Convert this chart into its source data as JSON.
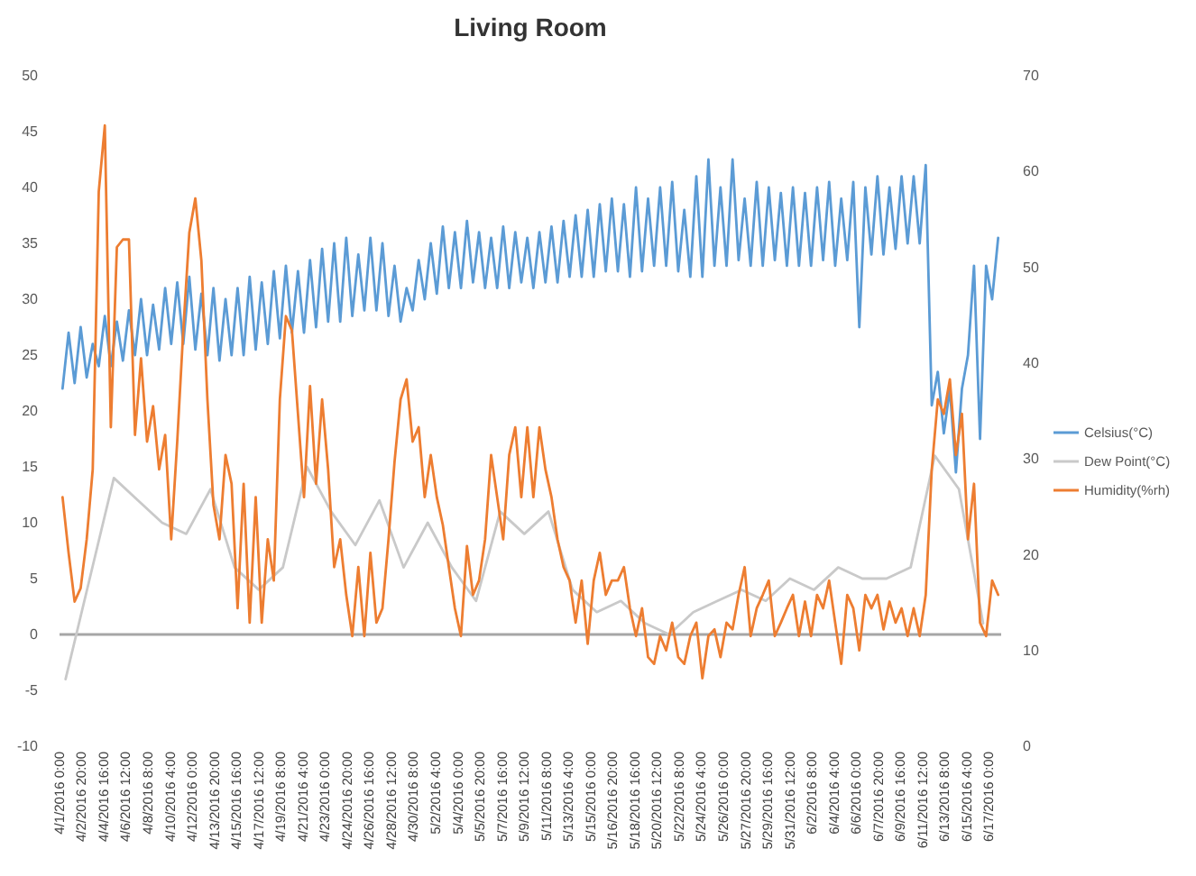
{
  "chart_data": {
    "type": "line",
    "title": "Living Room",
    "x": [
      "2016-04-01T06:00",
      "2016-04-01T18:00",
      "2016-04-02T06:00",
      "2016-04-02T18:00",
      "2016-04-03T06:00",
      "2016-04-03T18:00",
      "2016-04-04T06:00",
      "2016-04-04T18:00",
      "2016-04-05T06:00",
      "2016-04-05T18:00",
      "2016-04-06T06:00",
      "2016-04-06T18:00",
      "2016-04-07T06:00",
      "2016-04-07T18:00",
      "2016-04-08T06:00",
      "2016-04-08T18:00",
      "2016-04-09T06:00",
      "2016-04-09T18:00",
      "2016-04-10T06:00",
      "2016-04-10T18:00",
      "2016-04-11T06:00",
      "2016-04-11T18:00",
      "2016-04-12T06:00",
      "2016-04-12T18:00",
      "2016-04-13T06:00",
      "2016-04-13T18:00",
      "2016-04-14T06:00",
      "2016-04-14T18:00",
      "2016-04-15T06:00",
      "2016-04-15T18:00",
      "2016-04-16T06:00",
      "2016-04-16T18:00",
      "2016-04-17T06:00",
      "2016-04-17T18:00",
      "2016-04-18T06:00",
      "2016-04-18T18:00",
      "2016-04-19T06:00",
      "2016-04-19T18:00",
      "2016-04-20T06:00",
      "2016-04-20T18:00",
      "2016-04-21T06:00",
      "2016-04-21T18:00",
      "2016-04-22T06:00",
      "2016-04-22T18:00",
      "2016-04-23T06:00",
      "2016-04-23T18:00",
      "2016-04-24T06:00",
      "2016-04-24T18:00",
      "2016-04-25T06:00",
      "2016-04-25T18:00",
      "2016-04-26T06:00",
      "2016-04-26T18:00",
      "2016-04-27T06:00",
      "2016-04-27T18:00",
      "2016-04-28T06:00",
      "2016-04-28T18:00",
      "2016-04-29T06:00",
      "2016-04-29T18:00",
      "2016-04-30T06:00",
      "2016-04-30T18:00",
      "2016-05-01T06:00",
      "2016-05-01T18:00",
      "2016-05-02T06:00",
      "2016-05-02T18:00",
      "2016-05-03T06:00",
      "2016-05-03T18:00",
      "2016-05-04T06:00",
      "2016-05-04T18:00",
      "2016-05-05T06:00",
      "2016-05-05T18:00",
      "2016-05-06T06:00",
      "2016-05-06T18:00",
      "2016-05-07T06:00",
      "2016-05-07T18:00",
      "2016-05-08T06:00",
      "2016-05-08T18:00",
      "2016-05-09T06:00",
      "2016-05-09T18:00",
      "2016-05-10T06:00",
      "2016-05-10T18:00",
      "2016-05-11T06:00",
      "2016-05-11T18:00",
      "2016-05-12T06:00",
      "2016-05-12T18:00",
      "2016-05-13T06:00",
      "2016-05-13T18:00",
      "2016-05-14T06:00",
      "2016-05-14T18:00",
      "2016-05-15T06:00",
      "2016-05-15T18:00",
      "2016-05-16T06:00",
      "2016-05-16T18:00",
      "2016-05-17T06:00",
      "2016-05-17T18:00",
      "2016-05-18T06:00",
      "2016-05-18T18:00",
      "2016-05-19T06:00",
      "2016-05-19T18:00",
      "2016-05-20T06:00",
      "2016-05-20T18:00",
      "2016-05-21T06:00",
      "2016-05-21T18:00",
      "2016-05-22T06:00",
      "2016-05-22T18:00",
      "2016-05-23T06:00",
      "2016-05-23T18:00",
      "2016-05-24T06:00",
      "2016-05-24T18:00",
      "2016-05-25T06:00",
      "2016-05-25T18:00",
      "2016-05-26T06:00",
      "2016-05-26T18:00",
      "2016-05-27T06:00",
      "2016-05-27T18:00",
      "2016-05-28T06:00",
      "2016-05-28T18:00",
      "2016-05-29T06:00",
      "2016-05-29T18:00",
      "2016-05-30T06:00",
      "2016-05-30T18:00",
      "2016-05-31T06:00",
      "2016-05-31T18:00",
      "2016-06-01T06:00",
      "2016-06-01T18:00",
      "2016-06-02T06:00",
      "2016-06-02T18:00",
      "2016-06-03T06:00",
      "2016-06-03T18:00",
      "2016-06-04T06:00",
      "2016-06-04T18:00",
      "2016-06-05T06:00",
      "2016-06-05T18:00",
      "2016-06-06T06:00",
      "2016-06-06T18:00",
      "2016-06-07T06:00",
      "2016-06-07T18:00",
      "2016-06-08T06:00",
      "2016-06-08T18:00",
      "2016-06-09T06:00",
      "2016-06-09T18:00",
      "2016-06-10T06:00",
      "2016-06-10T18:00",
      "2016-06-11T06:00",
      "2016-06-11T18:00",
      "2016-06-12T06:00",
      "2016-06-12T18:00",
      "2016-06-13T06:00",
      "2016-06-13T18:00",
      "2016-06-14T06:00",
      "2016-06-14T18:00",
      "2016-06-15T06:00",
      "2016-06-15T18:00",
      "2016-06-16T06:00",
      "2016-06-16T18:00",
      "2016-06-17T06:00",
      "2016-06-17T18:00"
    ],
    "series": [
      {
        "name": "Celsius(°C)",
        "color": "#5b9bd5",
        "values": [
          22,
          27,
          22.5,
          27.5,
          23,
          26,
          24,
          28.5,
          24,
          28,
          24.5,
          29,
          25,
          30,
          25,
          29.5,
          25.5,
          31,
          26,
          31.5,
          26,
          32,
          25.5,
          30.5,
          25,
          31,
          24.5,
          30,
          25,
          31,
          25,
          32,
          25.5,
          31.5,
          26,
          32.5,
          26.5,
          33,
          27,
          32.5,
          27,
          33.5,
          27.5,
          34.5,
          28,
          35,
          28,
          35.5,
          28.5,
          34,
          29,
          35.5,
          29,
          35,
          28.5,
          33,
          28,
          31,
          29,
          33.5,
          30,
          35,
          30.5,
          36.5,
          31,
          36,
          31,
          37,
          31.5,
          36,
          31,
          35.5,
          31,
          36.5,
          31,
          36,
          31.5,
          35.5,
          31,
          36,
          31.5,
          36.5,
          31.5,
          37,
          32,
          37.5,
          32,
          38,
          32,
          38.5,
          32.5,
          39,
          32.5,
          38.5,
          32,
          40,
          32.5,
          39,
          33,
          40,
          33,
          40.5,
          32.5,
          38,
          32,
          41,
          32,
          42.5,
          33,
          40,
          33,
          42.5,
          33.5,
          39,
          33,
          40.5,
          33,
          40,
          33.5,
          39.5,
          33,
          40,
          33,
          39.5,
          33,
          40,
          33.5,
          40.5,
          33,
          39,
          33.5,
          40.5,
          27.5,
          40,
          34,
          41,
          34,
          40,
          34.5,
          41,
          35,
          41,
          35,
          42,
          20.5,
          23.5,
          18,
          22,
          14.5,
          22,
          25,
          33,
          17.5,
          33,
          30,
          35.5
        ]
      },
      {
        "name": "Dew Point(°C)",
        "color": "#c9c9c9",
        "x": [
          "2016-04-01T12:00",
          "2016-04-03T12:00",
          "2016-04-05T12:00",
          "2016-04-07T12:00",
          "2016-04-09T12:00",
          "2016-04-11T12:00",
          "2016-04-13T12:00",
          "2016-04-15T12:00",
          "2016-04-17T12:00",
          "2016-04-19T12:00",
          "2016-04-21T12:00",
          "2016-04-23T12:00",
          "2016-04-25T12:00",
          "2016-04-27T12:00",
          "2016-04-29T12:00",
          "2016-05-01T12:00",
          "2016-05-03T12:00",
          "2016-05-05T12:00",
          "2016-05-07T12:00",
          "2016-05-09T12:00",
          "2016-05-11T12:00",
          "2016-05-13T12:00",
          "2016-05-15T12:00",
          "2016-05-17T12:00",
          "2016-05-19T12:00",
          "2016-05-21T12:00",
          "2016-05-23T12:00",
          "2016-05-25T12:00",
          "2016-05-27T12:00",
          "2016-05-29T12:00",
          "2016-05-31T12:00",
          "2016-06-02T12:00",
          "2016-06-04T12:00",
          "2016-06-06T12:00",
          "2016-06-08T12:00",
          "2016-06-10T12:00",
          "2016-06-12T12:00",
          "2016-06-14T12:00",
          "2016-06-16T12:00"
        ],
        "values": [
          -4,
          5,
          14,
          12,
          10,
          9,
          13,
          6,
          4,
          6,
          15,
          11,
          8,
          12,
          6,
          10,
          6,
          3,
          11,
          9,
          11,
          4,
          2,
          3,
          1,
          0,
          2,
          3,
          4,
          3,
          5,
          4,
          6,
          5,
          5,
          6,
          16,
          13,
          1
        ]
      },
      {
        "name": "Humidity(%rh)",
        "color": "#ed7d31",
        "axis": "y2",
        "values": [
          26,
          20.2,
          15.1,
          16.5,
          21.6,
          28.9,
          57.9,
          64.8,
          33.3,
          52.1,
          52.9,
          52.9,
          32.5,
          40.5,
          31.8,
          35.5,
          28.9,
          32.5,
          21.6,
          31.8,
          43.4,
          53.6,
          57.2,
          50.7,
          36.2,
          25.2,
          21.6,
          30.4,
          27.4,
          14.4,
          27.4,
          12.9,
          26,
          12.9,
          21.6,
          17.3,
          36.2,
          44.9,
          43.4,
          34.7,
          26,
          37.6,
          27.4,
          36.2,
          28.9,
          18.7,
          21.6,
          15.8,
          11.5,
          18.7,
          11.5,
          20.2,
          12.9,
          14.4,
          21.6,
          29.7,
          36.2,
          38.3,
          31.8,
          33.3,
          26,
          30.4,
          26,
          23.1,
          18.7,
          14.4,
          11.5,
          20.9,
          15.8,
          17.3,
          21.6,
          30.4,
          26,
          21.6,
          30.4,
          33.3,
          26,
          33.3,
          26,
          33.3,
          28.9,
          26,
          21.6,
          18.7,
          17.3,
          12.9,
          17.3,
          10.7,
          17.3,
          20.2,
          15.8,
          17.3,
          17.3,
          18.7,
          14.4,
          11.5,
          14.4,
          9.3,
          8.6,
          11.5,
          10,
          12.9,
          9.3,
          8.6,
          11.5,
          12.9,
          7.1,
          11.5,
          12.2,
          9.3,
          12.9,
          12.2,
          15.8,
          18.7,
          11.5,
          14.4,
          15.8,
          17.3,
          11.5,
          12.9,
          14.4,
          15.8,
          11.5,
          15.1,
          11.5,
          15.8,
          14.4,
          17.3,
          12.9,
          8.6,
          15.8,
          14.4,
          10,
          15.8,
          14.4,
          15.8,
          12.2,
          15.1,
          12.9,
          14.4,
          11.5,
          14.4,
          11.5,
          15.8,
          28.9,
          36.2,
          34.7,
          38.3,
          30.4,
          34.7,
          21.6,
          27.4,
          12.9,
          11.5,
          17.3,
          15.8
        ]
      }
    ],
    "xlim": [
      "2016-04-01T00:00",
      "2016-06-18T00:00"
    ],
    "xticks": [
      {
        "value": "2016-04-01T00:00",
        "label": "4/1/2016 0:00"
      },
      {
        "value": "2016-04-02T20:00",
        "label": "4/2/2016 20:00"
      },
      {
        "value": "2016-04-04T16:00",
        "label": "4/4/2016 16:00"
      },
      {
        "value": "2016-04-06T12:00",
        "label": "4/6/2016 12:00"
      },
      {
        "value": "2016-04-08T08:00",
        "label": "4/8/2016 8:00"
      },
      {
        "value": "2016-04-10T04:00",
        "label": "4/10/2016 4:00"
      },
      {
        "value": "2016-04-12T00:00",
        "label": "4/12/2016 0:00"
      },
      {
        "value": "2016-04-13T20:00",
        "label": "4/13/2016 20:00"
      },
      {
        "value": "2016-04-15T16:00",
        "label": "4/15/2016 16:00"
      },
      {
        "value": "2016-04-17T12:00",
        "label": "4/17/2016 12:00"
      },
      {
        "value": "2016-04-19T08:00",
        "label": "4/19/2016 8:00"
      },
      {
        "value": "2016-04-21T04:00",
        "label": "4/21/2016 4:00"
      },
      {
        "value": "2016-04-23T00:00",
        "label": "4/23/2016 0:00"
      },
      {
        "value": "2016-04-24T20:00",
        "label": "4/24/2016 20:00"
      },
      {
        "value": "2016-04-26T16:00",
        "label": "4/26/2016 16:00"
      },
      {
        "value": "2016-04-28T12:00",
        "label": "4/28/2016 12:00"
      },
      {
        "value": "2016-04-30T08:00",
        "label": "4/30/2016 8:00"
      },
      {
        "value": "2016-05-02T04:00",
        "label": "5/2/2016 4:00"
      },
      {
        "value": "2016-05-04T00:00",
        "label": "5/4/2016 0:00"
      },
      {
        "value": "2016-05-05T20:00",
        "label": "5/5/2016 20:00"
      },
      {
        "value": "2016-05-07T16:00",
        "label": "5/7/2016 16:00"
      },
      {
        "value": "2016-05-09T12:00",
        "label": "5/9/2016 12:00"
      },
      {
        "value": "2016-05-11T08:00",
        "label": "5/11/2016 8:00"
      },
      {
        "value": "2016-05-13T04:00",
        "label": "5/13/2016 4:00"
      },
      {
        "value": "2016-05-15T00:00",
        "label": "5/15/2016 0:00"
      },
      {
        "value": "2016-05-16T20:00",
        "label": "5/16/2016 20:00"
      },
      {
        "value": "2016-05-18T16:00",
        "label": "5/18/2016 16:00"
      },
      {
        "value": "2016-05-20T12:00",
        "label": "5/20/2016 12:00"
      },
      {
        "value": "2016-05-22T08:00",
        "label": "5/22/2016 8:00"
      },
      {
        "value": "2016-05-24T04:00",
        "label": "5/24/2016 4:00"
      },
      {
        "value": "2016-05-26T00:00",
        "label": "5/26/2016 0:00"
      },
      {
        "value": "2016-05-27T20:00",
        "label": "5/27/2016 20:00"
      },
      {
        "value": "2016-05-29T16:00",
        "label": "5/29/2016 16:00"
      },
      {
        "value": "2016-05-31T12:00",
        "label": "5/31/2016 12:00"
      },
      {
        "value": "2016-06-02T08:00",
        "label": "6/2/2016 8:00"
      },
      {
        "value": "2016-06-04T04:00",
        "label": "6/4/2016 4:00"
      },
      {
        "value": "2016-06-06T00:00",
        "label": "6/6/2016 0:00"
      },
      {
        "value": "2016-06-07T20:00",
        "label": "6/7/2016 20:00"
      },
      {
        "value": "2016-06-09T16:00",
        "label": "6/9/2016 16:00"
      },
      {
        "value": "2016-06-11T12:00",
        "label": "6/11/2016 12:00"
      },
      {
        "value": "2016-06-13T08:00",
        "label": "6/13/2016 8:00"
      },
      {
        "value": "2016-06-15T04:00",
        "label": "6/15/2016 4:00"
      },
      {
        "value": "2016-06-17T00:00",
        "label": "6/17/2016 0:00"
      }
    ],
    "ylim": [
      -10,
      50
    ],
    "yticks": [
      -10,
      -5,
      0,
      5,
      10,
      15,
      20,
      25,
      30,
      35,
      40,
      45,
      50
    ],
    "y2lim": [
      0,
      70
    ],
    "y2ticks": [
      0,
      10,
      20,
      30,
      40,
      50,
      60,
      70
    ],
    "legend": "right",
    "line_style": "solid",
    "marker": "none"
  }
}
